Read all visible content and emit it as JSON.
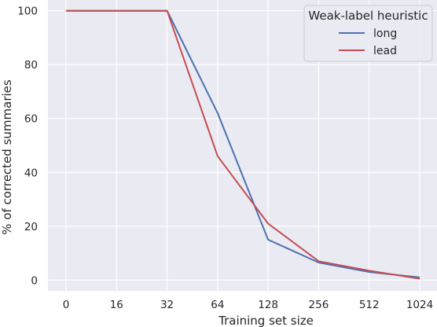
{
  "chart_data": {
    "type": "line",
    "title": "",
    "xlabel": "Training set size",
    "ylabel": "% of corrected summaries",
    "categories": [
      "0",
      "16",
      "32",
      "64",
      "128",
      "256",
      "512",
      "1024"
    ],
    "ylim": [
      -4,
      104
    ],
    "yticks": [
      0,
      20,
      40,
      60,
      80,
      100
    ],
    "grid": true,
    "legend": {
      "title": "Weak-label heuristic",
      "placement": "top-right"
    },
    "series": [
      {
        "name": "long",
        "color": "#4c72b0",
        "values": [
          100,
          100,
          100,
          62,
          15,
          6.5,
          3,
          1
        ]
      },
      {
        "name": "lead",
        "color": "#c44e52",
        "values": [
          100,
          100,
          100,
          46,
          21,
          7,
          3.5,
          0.5
        ]
      }
    ],
    "colors": {
      "plot_background": "#eaeaf2",
      "grid": "#ffffff"
    }
  }
}
